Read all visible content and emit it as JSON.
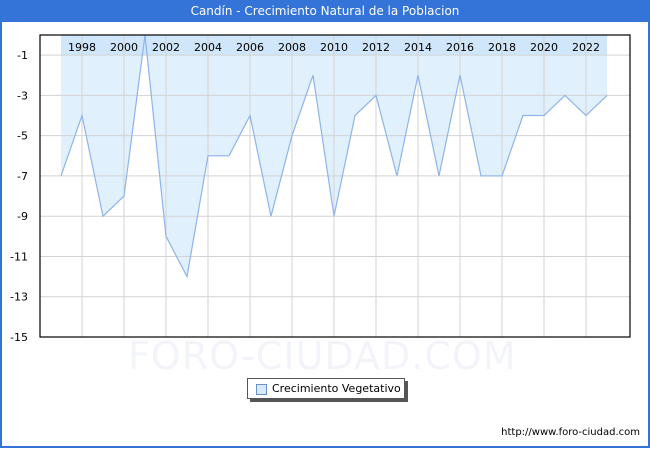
{
  "title": "Candín - Crecimiento Natural de la Poblacion",
  "watermark": "FORO-CIUDAD.COM",
  "footer_url": "http://www.foro-ciudad.com",
  "legend": {
    "label": "Crecimiento Vegetativo"
  },
  "colors": {
    "titlebar": "#3473d7",
    "fill": "#e1f0fd",
    "band": "#cfe6fb",
    "line": "#8fb3ea",
    "grid": "#d3d3d3"
  },
  "chart_data": {
    "type": "area",
    "title": "Candín - Crecimiento Natural de la Poblacion",
    "xlabel": "",
    "ylabel": "",
    "x": [
      1997,
      1998,
      1999,
      2000,
      2001,
      2002,
      2003,
      2004,
      2005,
      2006,
      2007,
      2008,
      2009,
      2010,
      2011,
      2012,
      2013,
      2014,
      2015,
      2016,
      2017,
      2018,
      2019,
      2020,
      2021,
      2022,
      2023
    ],
    "series": [
      {
        "name": "Crecimiento Vegetativo",
        "values": [
          -7,
          -4,
          -9,
          -8,
          0,
          -10,
          -12,
          -6,
          -6,
          -4,
          -9,
          -5,
          -2,
          -9,
          -4,
          -3,
          -7,
          -2,
          -7,
          -2,
          -7,
          -7,
          -4,
          -4,
          -3,
          -4,
          -3
        ]
      }
    ],
    "x_tick_labels": [
      "1998",
      "2000",
      "2002",
      "2004",
      "2006",
      "2008",
      "2010",
      "2012",
      "2014",
      "2016",
      "2018",
      "2020",
      "2022"
    ],
    "y_tick_labels": [
      "-1",
      "-3",
      "-5",
      "-7",
      "-9",
      "-11",
      "-13",
      "-15"
    ],
    "ylim": [
      -15,
      0
    ],
    "grid": true,
    "legend_position": "bottom"
  }
}
